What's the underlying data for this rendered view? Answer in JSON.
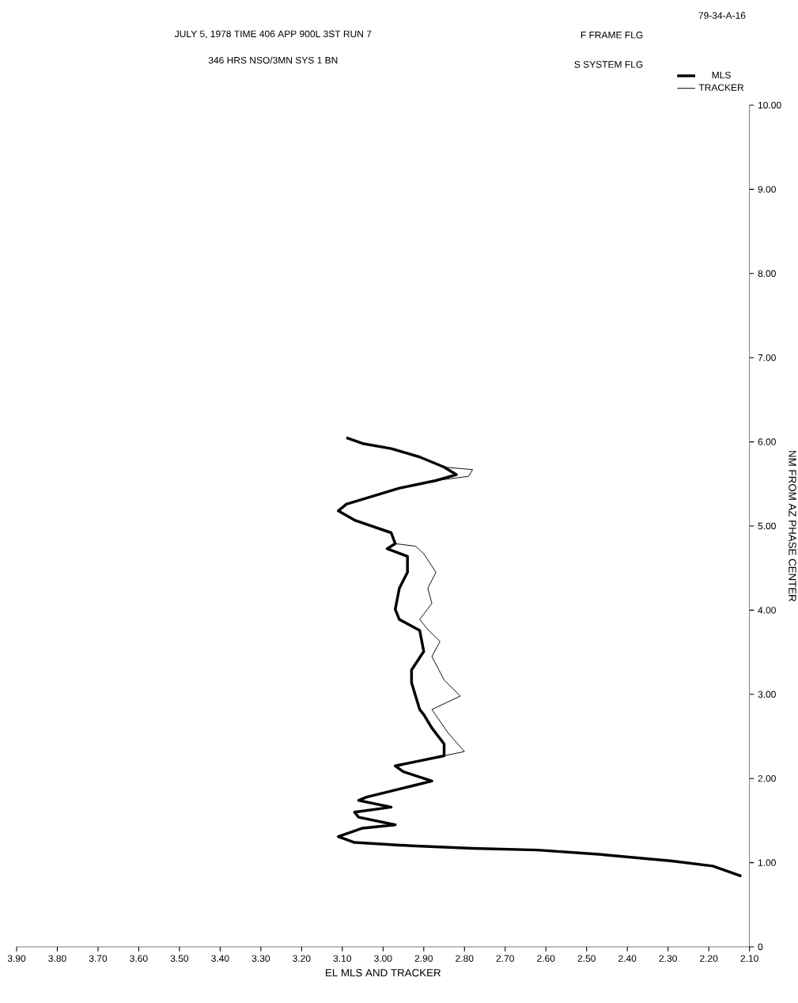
{
  "chart_data": {
    "type": "line",
    "title": "JULY 5, 1978   TIME 406   APP 900L 3ST RUN 7",
    "subtitle": "346 HRS   NSO/3MN   SYS 1   BN",
    "xlabel": "EL MLS AND TRACKER",
    "ylabel": "NM FROM AZ PHASE CENTER",
    "annotations": [
      "F  FRAME FLG",
      "S  SYSTEM FLG",
      "79-34-A-16"
    ],
    "xlim": [
      3.9,
      2.1
    ],
    "xticks": [
      {
        "value": 3.9,
        "label": "3.90"
      },
      {
        "value": 3.8,
        "label": "3.80"
      },
      {
        "value": 3.7,
        "label": "3.70"
      },
      {
        "value": 3.6,
        "label": "3.60"
      },
      {
        "value": 3.5,
        "label": "3.50"
      },
      {
        "value": 3.4,
        "label": "3.40"
      },
      {
        "value": 3.3,
        "label": "3.30"
      },
      {
        "value": 3.2,
        "label": "3.20"
      },
      {
        "value": 3.1,
        "label": "3.10"
      },
      {
        "value": 3.0,
        "label": "3.00"
      },
      {
        "value": 2.9,
        "label": "2.90"
      },
      {
        "value": 2.8,
        "label": "2.80"
      },
      {
        "value": 2.7,
        "label": "2.70"
      },
      {
        "value": 2.6,
        "label": "2.60"
      },
      {
        "value": 2.5,
        "label": "2.50"
      },
      {
        "value": 2.4,
        "label": "2.40"
      },
      {
        "value": 2.3,
        "label": "2.30"
      },
      {
        "value": 2.2,
        "label": "2.20"
      },
      {
        "value": 2.1,
        "label": "2.10"
      }
    ],
    "ylim": [
      0,
      10
    ],
    "yticks": [
      0,
      {
        "value": 1,
        "label": "1.00"
      },
      {
        "value": 2,
        "label": "2.00"
      },
      {
        "value": 3,
        "label": "3.00"
      },
      {
        "value": 4,
        "label": "4.00"
      },
      {
        "value": 5,
        "label": "5.00"
      },
      {
        "value": 6,
        "label": "6.00"
      },
      {
        "value": 7,
        "label": "7.00"
      },
      {
        "value": 8,
        "label": "8.00"
      },
      {
        "value": 9,
        "label": "9.00"
      },
      {
        "value": 10,
        "label": "10.00"
      }
    ],
    "legend": "top right",
    "series": [
      {
        "name": "MLS",
        "color": "#000000",
        "x": [
          2.12,
          2.19,
          2.29,
          2.47,
          2.62,
          2.78,
          2.93,
          3.07,
          3.11,
          3.05,
          2.97,
          3.06,
          3.07,
          2.98,
          3.06,
          3.04,
          2.93,
          2.88,
          2.95,
          2.97,
          2.91,
          2.85,
          2.85,
          2.88,
          2.9,
          2.91,
          2.93,
          2.93,
          2.9,
          2.91,
          2.96,
          2.97,
          2.96,
          2.94,
          2.94,
          2.99,
          2.97,
          2.98,
          3.07,
          3.11,
          3.09,
          2.96,
          2.87,
          2.82,
          2.85,
          2.91,
          2.98,
          3.05,
          3.09
        ],
        "values": [
          0.84,
          0.96,
          1.02,
          1.1,
          1.15,
          1.17,
          1.2,
          1.24,
          1.31,
          1.41,
          1.45,
          1.54,
          1.6,
          1.66,
          1.74,
          1.78,
          1.91,
          1.97,
          2.08,
          2.15,
          2.21,
          2.27,
          2.41,
          2.6,
          2.76,
          2.82,
          3.14,
          3.29,
          3.51,
          3.76,
          3.89,
          4.01,
          4.26,
          4.45,
          4.64,
          4.73,
          4.79,
          4.92,
          5.07,
          5.18,
          5.26,
          5.45,
          5.54,
          5.61,
          5.7,
          5.82,
          5.92,
          5.98,
          6.05
        ]
      },
      {
        "name": "TRACKER",
        "color": "#000000",
        "x": [
          3.11,
          3.05,
          2.97,
          3.06,
          3.07,
          2.98,
          3.06,
          3.04,
          2.93,
          2.88,
          2.95,
          2.97,
          2.91,
          2.85,
          2.8,
          2.84,
          2.88,
          2.81,
          2.85,
          2.88,
          2.86,
          2.89,
          2.91,
          2.88,
          2.89,
          2.87,
          2.9,
          2.92,
          2.97,
          2.98,
          3.07,
          3.11,
          3.09,
          2.96,
          2.87,
          2.79,
          2.78,
          2.85,
          2.91,
          2.98,
          3.05,
          3.09
        ],
        "values": [
          1.31,
          1.41,
          1.45,
          1.54,
          1.6,
          1.66,
          1.74,
          1.78,
          1.91,
          1.97,
          2.08,
          2.15,
          2.21,
          2.27,
          2.32,
          2.54,
          2.82,
          2.98,
          3.17,
          3.45,
          3.63,
          3.77,
          3.89,
          4.08,
          4.26,
          4.45,
          4.67,
          4.76,
          4.79,
          4.92,
          5.07,
          5.18,
          5.26,
          5.45,
          5.54,
          5.59,
          5.67,
          5.7,
          5.82,
          5.92,
          5.98,
          6.05
        ]
      }
    ]
  }
}
